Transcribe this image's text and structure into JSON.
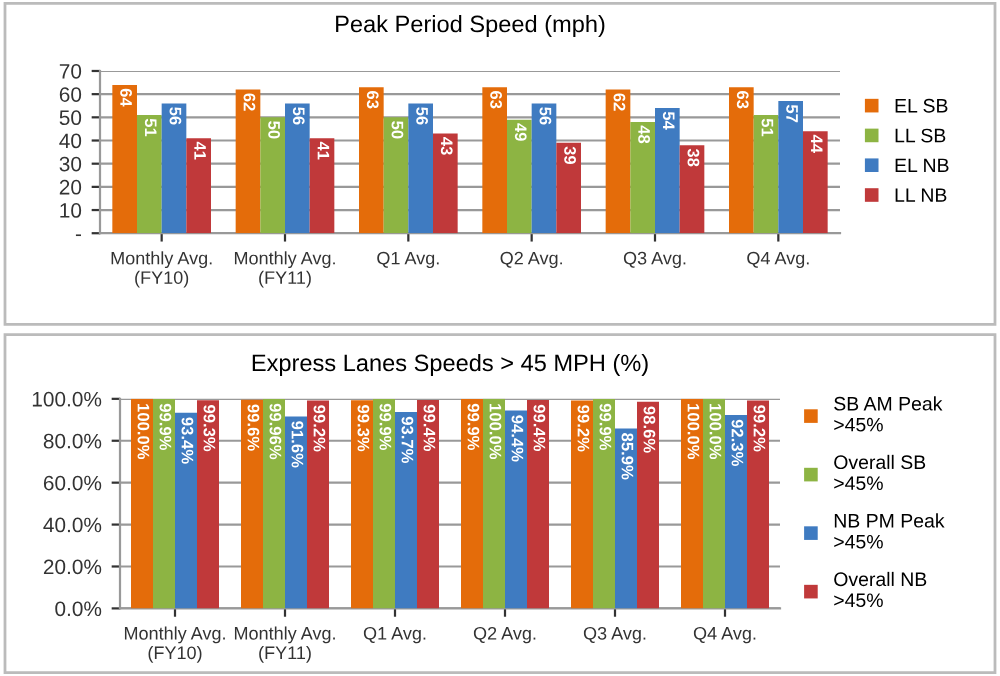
{
  "chart_data": [
    {
      "type": "bar",
      "title": "Peak Period Speed (mph)",
      "categories": [
        "Monthly Avg.\n(FY10)",
        "Monthly Avg.\n(FY11)",
        "Q1 Avg.",
        "Q2 Avg.",
        "Q3 Avg.",
        "Q4 Avg."
      ],
      "series": [
        {
          "name": "EL SB",
          "color": "#e46c0a",
          "values": [
            64,
            62,
            63,
            63,
            62,
            63
          ]
        },
        {
          "name": "LL SB",
          "color": "#8db443",
          "values": [
            51,
            50,
            50,
            49,
            48,
            51
          ]
        },
        {
          "name": "EL NB",
          "color": "#3f7bc1",
          "values": [
            56,
            56,
            56,
            56,
            54,
            57
          ]
        },
        {
          "name": "LL NB",
          "color": "#c0393a",
          "values": [
            41,
            41,
            43,
            39,
            38,
            44
          ]
        }
      ],
      "ylim": [
        0,
        70
      ],
      "yticks": [
        {
          "value": 0,
          "label": "-"
        },
        10,
        20,
        30,
        40,
        50,
        60,
        70
      ],
      "grid": "y",
      "legend": "right",
      "data_labels": true
    },
    {
      "type": "bar",
      "title": "Express Lanes Speeds > 45 MPH (%)",
      "categories": [
        "Monthly Avg.\n(FY10)",
        "Monthly Avg.\n(FY11)",
        "Q1 Avg.",
        "Q2 Avg.",
        "Q3 Avg.",
        "Q4 Avg."
      ],
      "series": [
        {
          "name": "SB AM Peak\n>45%",
          "color": "#e46c0a",
          "values": [
            100.0,
            99.6,
            99.3,
            99.9,
            99.2,
            100.0
          ],
          "value_labels": [
            "100.0%",
            "99.6%",
            "99.3%",
            "99.9%",
            "99.2%",
            "100.0%"
          ]
        },
        {
          "name": "Overall SB\n>45%",
          "color": "#8db443",
          "values": [
            99.9,
            99.96,
            99.9,
            100.0,
            99.9,
            100.0
          ],
          "value_labels": [
            "99.9%",
            "99.96%",
            "99.9%",
            "100.0%",
            "99.9%",
            "100.0%"
          ]
        },
        {
          "name": "NB PM Peak\n>45%",
          "color": "#3f7bc1",
          "values": [
            93.4,
            91.6,
            93.7,
            94.4,
            85.9,
            92.3
          ],
          "value_labels": [
            "93.4%",
            "91.6%",
            "93.7%",
            "94.4%",
            "85.9%",
            "92.3%"
          ]
        },
        {
          "name": "Overall NB\n>45%",
          "color": "#c0393a",
          "values": [
            99.3,
            99.2,
            99.4,
            99.4,
            98.6,
            99.2
          ],
          "value_labels": [
            "99.3%",
            "99.2%",
            "99.4%",
            "99.4%",
            "98.6%",
            "99.2%"
          ]
        }
      ],
      "ylim": [
        0,
        100
      ],
      "yticks": [
        {
          "value": 0,
          "label": "0.0%"
        },
        {
          "value": 20,
          "label": "20.0%"
        },
        {
          "value": 40,
          "label": "40.0%"
        },
        {
          "value": 60,
          "label": "60.0%"
        },
        {
          "value": 80,
          "label": "80.0%"
        },
        {
          "value": 100,
          "label": "100.0%"
        }
      ],
      "grid": "y",
      "legend": "right"
    }
  ]
}
